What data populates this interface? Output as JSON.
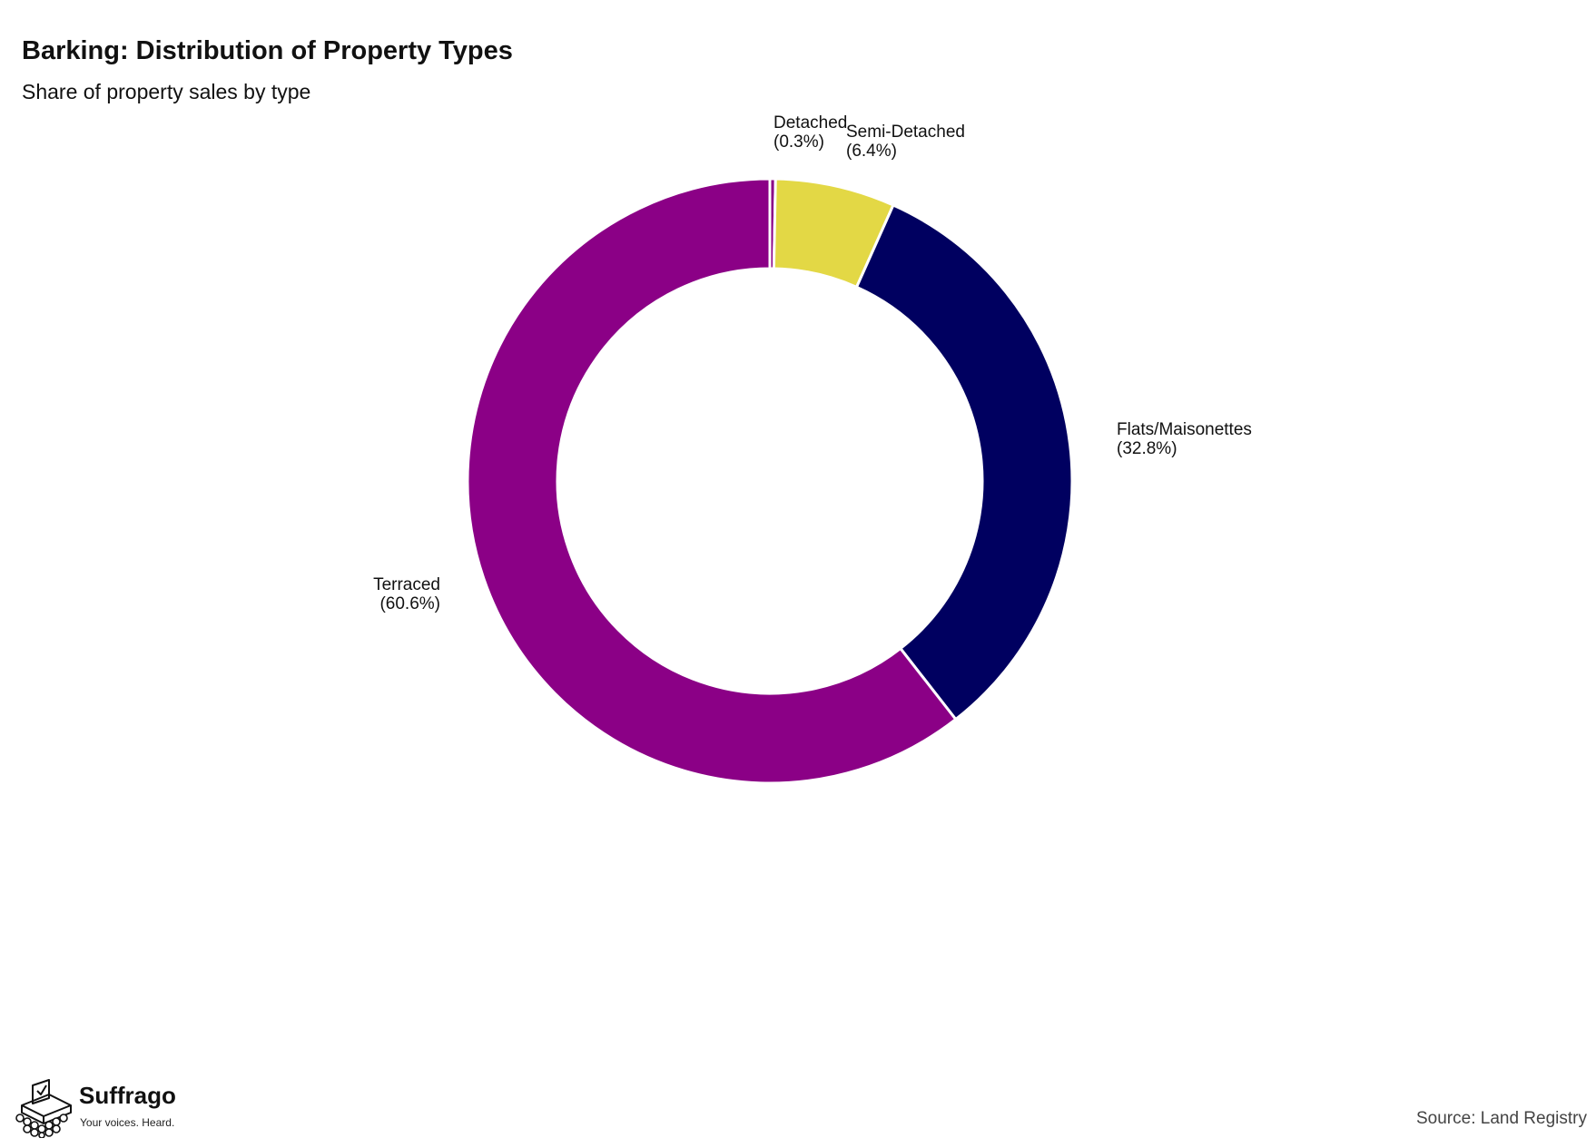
{
  "chart_data": {
    "type": "pie",
    "style": "donut",
    "title": "Barking: Distribution of Property Types",
    "subtitle": "Share of property sales by type",
    "slices": [
      {
        "name": "Detached",
        "value": 0.3,
        "label": "(0.3%)",
        "color": "#8b0086"
      },
      {
        "name": "Semi-Detached",
        "value": 6.4,
        "label": "(6.4%)",
        "color": "#e3d845"
      },
      {
        "name": "Flats/Maisonettes",
        "value": 32.8,
        "label": "(32.8%)",
        "color": "#000060"
      },
      {
        "name": "Terraced",
        "value": 60.6,
        "label": "(60.6%)",
        "color": "#8b0086"
      }
    ],
    "start": "top",
    "direction": "clockwise",
    "legend": "none"
  },
  "branding": {
    "logo_text": "Suffrago",
    "tagline": "Your voices. Heard."
  },
  "source": "Source: Land Registry"
}
